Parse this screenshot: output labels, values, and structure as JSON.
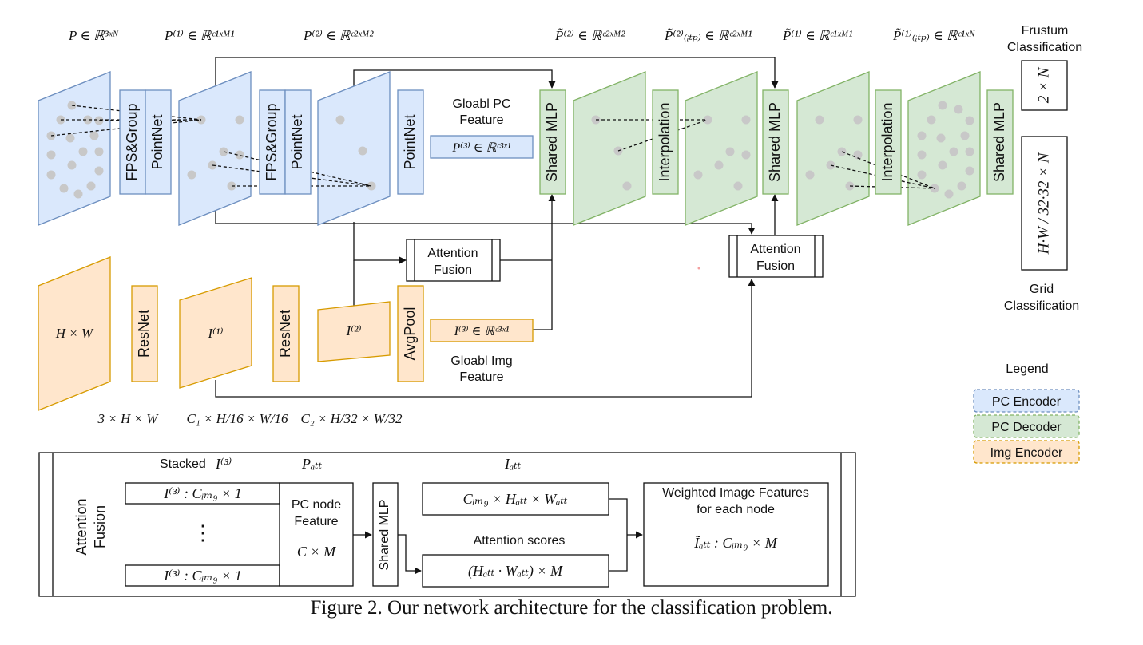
{
  "header": {
    "p_math": "P ∈ ℝ³ˣᴺ",
    "p1_math": "P⁽¹⁾ ∈ ℝᶜ¹ˣᴹ¹",
    "p2_math": "P⁽²⁾ ∈ ℝᶜ²ˣᴹ²",
    "pt2_math": "P̃⁽²⁾ ∈ ℝᶜ²ˣᴹ²",
    "pitp2_math": "P̃⁽²⁾₍ᵢₜₚ₎ ∈ ℝᶜ²ˣᴹ¹",
    "pt1_math": "P̃⁽¹⁾ ∈ ℝᶜ¹ˣᴹ¹",
    "pitp1_math": "P̃⁽¹⁾₍ᵢₜₚ₎ ∈ ℝᶜ¹ˣᴺ"
  },
  "modules": {
    "fps_group": "FPS&Group",
    "pointnet": "PointNet",
    "shared_mlp": "Shared MLP",
    "interpolation": "Interpolation",
    "resnet": "ResNet",
    "avgpool": "AvgPool"
  },
  "global_pc": {
    "title_line1": "Gloabl PC",
    "title_line2": "Feature",
    "math": "P⁽³⁾ ∈ ℝᶜ³ˣ¹"
  },
  "global_img": {
    "title_line1": "Gloabl Img",
    "title_line2": "Feature",
    "math": "I⁽³⁾ ∈ ℝᶜ³ˣ¹"
  },
  "attention_fusion": {
    "line1": "Attention",
    "line2": "Fusion"
  },
  "images": {
    "img0_label": "H × W",
    "img1_label": "I⁽¹⁾",
    "img2_label": "I⁽²⁾",
    "dim0": "3 × H × W",
    "dim1": "C₁ × H/16 × W/16",
    "dim2": "C₂ × H/32 × W/32"
  },
  "outputs": {
    "frustum_line1": "Frustum",
    "frustum_line2": "Classification",
    "frustum_box": "2 × N",
    "grid_box": "H·W / 32·32 × N",
    "grid_line1": "Grid",
    "grid_line2": "Classification"
  },
  "legend": {
    "title": "Legend",
    "items": [
      {
        "label": "PC Encoder",
        "fill": "#dae8fc",
        "stroke": "#6c8ebf"
      },
      {
        "label": "PC Decoder",
        "fill": "#d5e8d4",
        "stroke": "#82b366"
      },
      {
        "label": "Img Encoder",
        "fill": "#ffe6cc",
        "stroke": "#d79b00"
      }
    ]
  },
  "detail": {
    "side_line1": "Attention",
    "side_line2": "Fusion",
    "stacked_prefix": "Stacked",
    "stacked_math": "I⁽³⁾",
    "p_att": "Pₐₜₜ",
    "i_att": "Iₐₜₜ",
    "row_top": "I⁽³⁾ : Cᵢₘ₉ × 1",
    "row_dots": "⋮",
    "row_bottom": "I⁽³⁾ : Cᵢₘ₉ × 1",
    "pc_node_line1": "PC node",
    "pc_node_line2": "Feature",
    "pc_node_math": "C × M",
    "shared_mlp": "Shared MLP",
    "img_att_math": "Cᵢₘ₉ × Hₐₜₜ × Wₐₜₜ",
    "scores_label": "Attention scores",
    "scores_math": "(Hₐₜₜ · Wₐₜₜ) × M",
    "weighted_line1": "Weighted Image Features",
    "weighted_line2": "for each node",
    "weighted_math": "Ĩₐₜₜ : Cᵢₘ₉ × M"
  },
  "caption": "Figure 2. Our network architecture for the classification problem.",
  "colors": {
    "pc_encoder_fill": "#dae8fc",
    "pc_encoder_stroke": "#6c8ebf",
    "pc_decoder_fill": "#d5e8d4",
    "pc_decoder_stroke": "#82b366",
    "img_encoder_fill": "#ffe6cc",
    "img_encoder_stroke": "#d79b00",
    "point": "#c8c8c8"
  }
}
